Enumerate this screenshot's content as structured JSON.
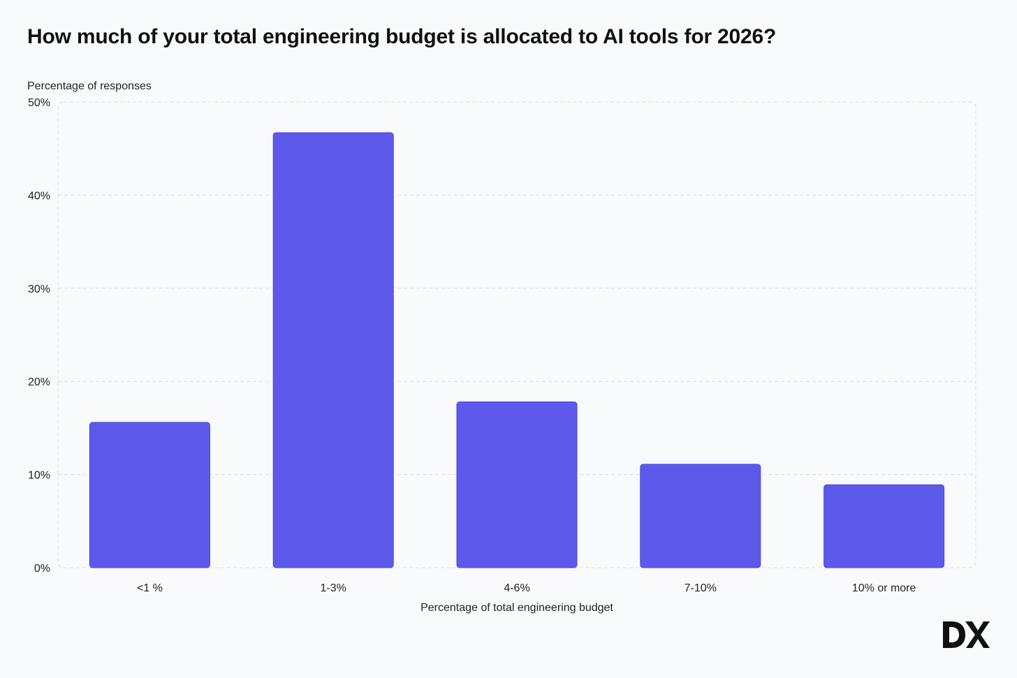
{
  "chart_data": {
    "type": "bar",
    "title": "How much of your total engineering budget is allocated to AI tools for 2026?",
    "ylabel": "Percentage of responses",
    "xlabel": "Percentage of total engineering budget",
    "categories": [
      "<1 %",
      "1-3%",
      "4-6%",
      "7-10%",
      "10% or more"
    ],
    "values": [
      15.6,
      46.7,
      17.8,
      11.1,
      8.9
    ],
    "ylim": [
      0,
      50
    ],
    "yticks": [
      0,
      10,
      20,
      30,
      40,
      50
    ],
    "ytick_labels": [
      "0%",
      "10%",
      "20%",
      "30%",
      "40%",
      "50%"
    ],
    "grid": true,
    "bar_color": "#5d5aeb"
  },
  "brand": {
    "logo_text": "DX"
  }
}
